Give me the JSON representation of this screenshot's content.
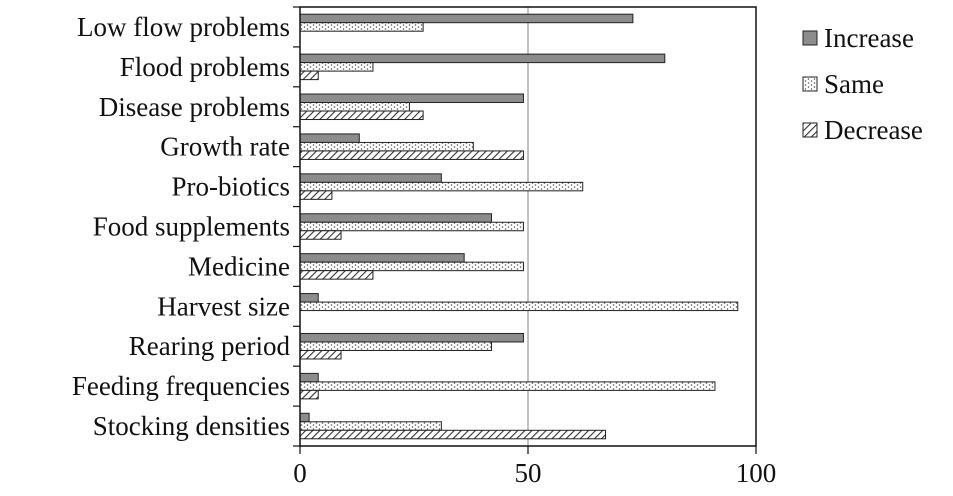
{
  "chart_data": {
    "type": "bar",
    "orientation": "horizontal",
    "categories": [
      "Low flow problems",
      "Flood problems",
      "Disease problems",
      "Growth rate",
      "Pro-biotics",
      "Food supplements",
      "Medicine",
      "Harvest size",
      "Rearing period",
      "Feeding frequencies",
      "Stocking densities"
    ],
    "series": [
      {
        "name": "Increase",
        "fill": "solid-gray",
        "values": [
          73,
          80,
          49,
          13,
          31,
          42,
          36,
          4,
          49,
          4,
          2
        ]
      },
      {
        "name": "Same",
        "fill": "dotted",
        "values": [
          27,
          16,
          24,
          38,
          62,
          49,
          49,
          96,
          42,
          91,
          31
        ]
      },
      {
        "name": "Decrease",
        "fill": "hatched",
        "values": [
          0,
          4,
          27,
          49,
          7,
          9,
          16,
          0,
          9,
          4,
          67
        ]
      }
    ],
    "xlim": [
      0,
      100
    ],
    "xticks": [
      "0",
      "50",
      "100"
    ],
    "gridlines": [
      50
    ],
    "legend": "right",
    "title": "",
    "xlabel": "",
    "ylabel": ""
  },
  "colors": {
    "increase": "#8c8c8c",
    "outline": "#222222",
    "grid": "#9a9a9a"
  }
}
